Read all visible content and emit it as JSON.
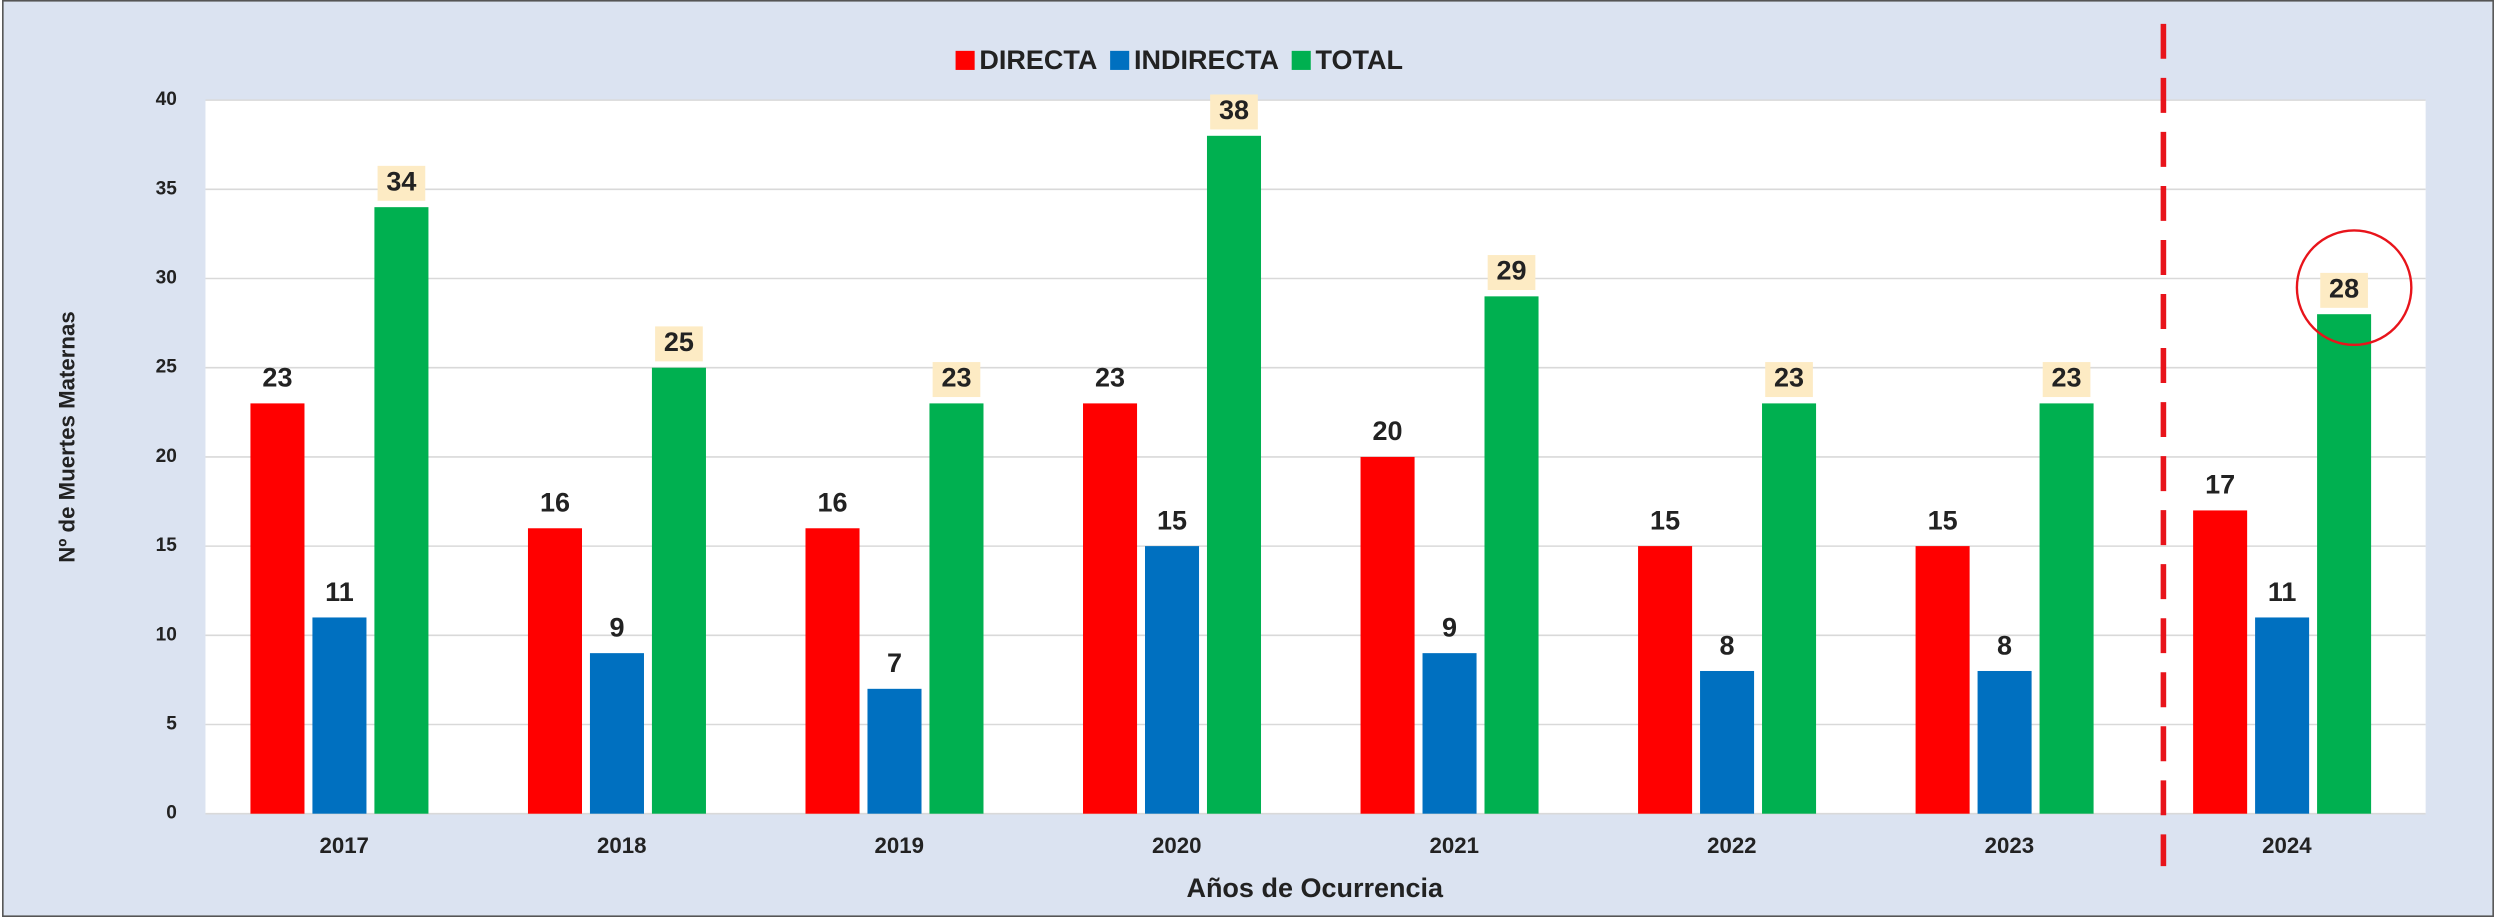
{
  "chart_data": {
    "type": "bar",
    "categories": [
      "2017",
      "2018",
      "2019",
      "2020",
      "2021",
      "2022",
      "2023",
      "2024"
    ],
    "series": [
      {
        "name": "DIRECTA",
        "color": "#ff0000",
        "values": [
          23,
          16,
          16,
          23,
          20,
          15,
          15,
          17
        ]
      },
      {
        "name": "INDIRECTA",
        "color": "#0070c0",
        "values": [
          11,
          9,
          7,
          15,
          9,
          8,
          8,
          11
        ]
      },
      {
        "name": "TOTAL",
        "color": "#00b050",
        "values": [
          34,
          25,
          23,
          38,
          29,
          23,
          23,
          28
        ]
      }
    ],
    "y_label": "Nº de Muertes Maternas",
    "x_label": "Años de Ocurrencia",
    "ylim": [
      0,
      40
    ],
    "yticks": [
      0,
      5,
      10,
      15,
      20,
      25,
      30,
      35,
      40
    ],
    "grid": true,
    "legend": "top"
  }
}
